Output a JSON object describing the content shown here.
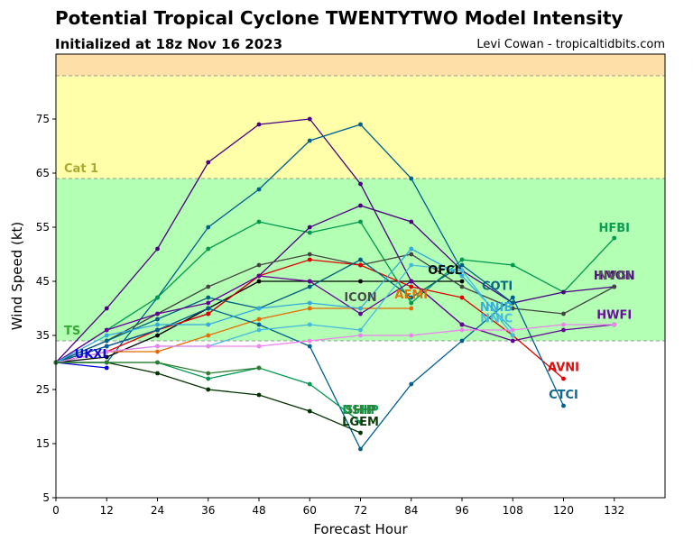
{
  "header": {
    "title": "Potential Tropical Cyclone TWENTYTWO Model Intensity",
    "subtitle": "Initialized at 18z Nov 16 2023",
    "credit": "Levi Cowan - tropicaltidbits.com"
  },
  "chart_data": {
    "type": "line",
    "xlabel": "Forecast Hour",
    "ylabel": "Wind Speed (kt)",
    "xlim": [
      0,
      144
    ],
    "ylim": [
      5,
      87
    ],
    "xticks": [
      0,
      12,
      24,
      36,
      48,
      60,
      72,
      84,
      96,
      108,
      120,
      132
    ],
    "yticks": [
      5,
      15,
      25,
      35,
      45,
      55,
      65,
      75
    ],
    "grid": false,
    "bands": [
      {
        "from": 5,
        "to": 34,
        "color": "#ffffff",
        "label": ""
      },
      {
        "from": 34,
        "to": 64,
        "color": "#b3ffb3",
        "label": "TS",
        "label_color": "#33aa33"
      },
      {
        "from": 64,
        "to": 83,
        "color": "#ffffaa",
        "label": "Cat 1",
        "label_color": "#aaaa33"
      },
      {
        "from": 83,
        "to": 87,
        "color": "#ffdfa8",
        "label": ""
      }
    ],
    "series": [
      {
        "name": "UKXI",
        "color": "#0000dd",
        "x": [
          0,
          12
        ],
        "y": [
          30,
          29
        ]
      },
      {
        "name": "",
        "color": "#4b0082",
        "x": [
          0,
          12,
          24,
          36,
          48,
          60,
          72,
          84,
          96
        ],
        "y": [
          30,
          40,
          51,
          67,
          74,
          75,
          63,
          45,
          37
        ]
      },
      {
        "name": "",
        "color": "#005f8f",
        "x": [
          0,
          12,
          24,
          36,
          48,
          60,
          72,
          84,
          96
        ],
        "y": [
          30,
          30,
          42,
          55,
          62,
          71,
          74,
          64,
          47
        ]
      },
      {
        "name": "HFBI",
        "color": "#00994d",
        "x": [
          0,
          12,
          24,
          36,
          48,
          60,
          72,
          84,
          96,
          108,
          120,
          132
        ],
        "y": [
          30,
          36,
          42,
          51,
          56,
          54,
          56,
          41,
          49,
          48,
          43,
          53
        ]
      },
      {
        "name": "HMON",
        "color": "#4b0082",
        "x": [
          0,
          12,
          24,
          36,
          48,
          60,
          72,
          84,
          96,
          108,
          120,
          132
        ],
        "y": [
          30,
          33,
          36,
          39,
          46,
          55,
          59,
          56,
          47,
          41,
          43,
          44
        ]
      },
      {
        "name": "OFCL",
        "color": "#000000",
        "x": [
          0,
          12,
          24,
          36,
          48,
          60,
          72,
          84,
          96
        ],
        "y": [
          30,
          31,
          35,
          40,
          45,
          45,
          45,
          45,
          45
        ]
      },
      {
        "name": "ICON",
        "color": "#444444",
        "x": [
          0,
          12,
          24,
          36,
          48,
          60,
          72,
          84,
          96,
          108,
          120,
          132
        ],
        "y": [
          30,
          34,
          39,
          44,
          48,
          50,
          48,
          50,
          44,
          40,
          39,
          44
        ]
      },
      {
        "name": "AEMI",
        "color": "#e66b00",
        "x": [
          0,
          12,
          24,
          36,
          48,
          60,
          72,
          84
        ],
        "y": [
          30,
          32,
          32,
          35,
          38,
          40,
          40,
          40
        ]
      },
      {
        "name": "AVNI",
        "color": "#dd0000",
        "x": [
          0,
          12,
          24,
          36,
          48,
          60,
          72,
          84,
          96,
          108,
          120
        ],
        "y": [
          30,
          32,
          36,
          39,
          46,
          49,
          48,
          44,
          42,
          35,
          27
        ]
      },
      {
        "name": "CTCI",
        "color": "#005f8f",
        "x": [
          0,
          12,
          24,
          36,
          48,
          60,
          72,
          84,
          96,
          108,
          120
        ],
        "y": [
          30,
          33,
          36,
          40,
          37,
          33,
          14,
          26,
          34,
          42,
          22
        ]
      },
      {
        "name": "COTI",
        "color": "#006080",
        "x": [
          0,
          12,
          24,
          36,
          48,
          60,
          72,
          84,
          96,
          108
        ],
        "y": [
          30,
          34,
          38,
          42,
          40,
          44,
          49,
          42,
          48,
          41
        ]
      },
      {
        "name": "HWFI",
        "color": "#660099",
        "x": [
          0,
          12,
          24,
          36,
          48,
          60,
          72,
          84,
          96,
          108,
          120,
          132
        ],
        "y": [
          30,
          36,
          39,
          41,
          46,
          45,
          39,
          45,
          37,
          34,
          36,
          37
        ]
      },
      {
        "name": "NNIB",
        "color": "#33aadd",
        "x": [
          0,
          12,
          24,
          36,
          48,
          60,
          72,
          84,
          96,
          108
        ],
        "y": [
          30,
          35,
          37,
          37,
          40,
          41,
          40,
          51,
          46,
          36
        ]
      },
      {
        "name": "NNIC",
        "color": "#44bbdd",
        "x": [
          0,
          12,
          24,
          36,
          48,
          60,
          72,
          84,
          96,
          108
        ],
        "y": [
          30,
          32,
          33,
          33,
          36,
          37,
          36,
          48,
          47,
          35
        ]
      },
      {
        "name": "",
        "color": "#ee82ee",
        "x": [
          0,
          12,
          24,
          36,
          48,
          60,
          72,
          84,
          96,
          108,
          120,
          132
        ],
        "y": [
          30,
          32,
          33,
          33,
          33,
          34,
          35,
          35,
          36,
          36,
          37,
          37
        ]
      },
      {
        "name": "DSHP",
        "color": "#00994d",
        "x": [
          0,
          12,
          24,
          36,
          48,
          60,
          72
        ],
        "y": [
          30,
          30,
          30,
          27,
          29,
          26,
          19
        ]
      },
      {
        "name": "LGEM",
        "color": "#003300",
        "x": [
          0,
          12,
          24,
          36,
          48,
          60,
          72
        ],
        "y": [
          30,
          30,
          28,
          25,
          24,
          21,
          17
        ]
      },
      {
        "name": "",
        "color": "#2e7d32",
        "x": [
          0,
          12,
          24,
          36,
          48
        ],
        "y": [
          30,
          30,
          30,
          28,
          29
        ]
      }
    ],
    "annotations": [
      {
        "text": "UKXI",
        "x": 12,
        "y": 30.8,
        "color": "#0000dd",
        "anchor": "end"
      },
      {
        "text": "OFCL",
        "x": 96,
        "y": 46.3,
        "color": "#000000",
        "anchor": "end"
      },
      {
        "text": "ICON",
        "x": 72,
        "y": 41.3,
        "color": "#444444",
        "anchor": "middle"
      },
      {
        "text": "AEMI",
        "x": 84,
        "y": 41.8,
        "color": "#e66b00",
        "anchor": "middle"
      },
      {
        "text": "COTI",
        "x": 108,
        "y": 43.4,
        "color": "#006080",
        "anchor": "end"
      },
      {
        "text": "NNIB",
        "x": 108,
        "y": 39.5,
        "color": "#33aadd",
        "anchor": "end"
      },
      {
        "text": "NNIC",
        "x": 108,
        "y": 37.4,
        "color": "#44bbdd",
        "anchor": "end"
      },
      {
        "text": "HFBI",
        "x": 132,
        "y": 54.2,
        "color": "#00994d",
        "anchor": "middle"
      },
      {
        "text": "HMON",
        "x": 132,
        "y": 45.3,
        "color": "#4b0082",
        "anchor": "middle"
      },
      {
        "text": "NVGI",
        "x": 132,
        "y": 45.3,
        "color": "#555555",
        "anchor": "middle"
      },
      {
        "text": "HWFI",
        "x": 132,
        "y": 38.1,
        "color": "#660099",
        "anchor": "middle"
      },
      {
        "text": "AVNI",
        "x": 120,
        "y": 28.4,
        "color": "#dd0000",
        "anchor": "middle"
      },
      {
        "text": "CTCI",
        "x": 120,
        "y": 23.3,
        "color": "#005f8f",
        "anchor": "middle"
      },
      {
        "text": "DSHP",
        "x": 72,
        "y": 20.5,
        "color": "#00994d",
        "anchor": "middle"
      },
      {
        "text": "SHIP",
        "x": 72,
        "y": 20.5,
        "color": "#2e7d32",
        "anchor": "middle"
      },
      {
        "text": "LGEM",
        "x": 72,
        "y": 18.3,
        "color": "#003300",
        "anchor": "middle"
      }
    ]
  }
}
